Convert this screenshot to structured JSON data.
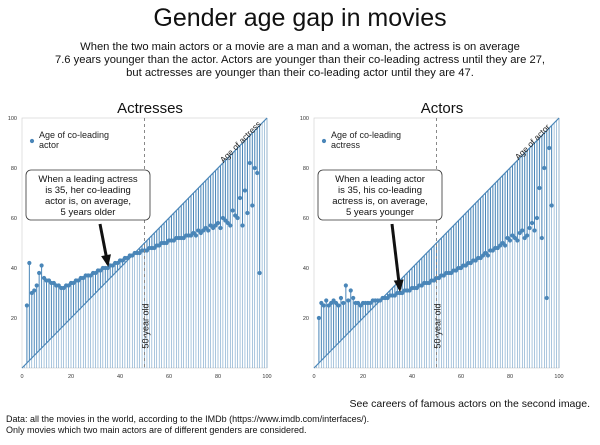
{
  "header": {
    "title": "Gender age gap in movies",
    "subtitle_lines": [
      "When the two main actors or a movie are a man and a woman, the actress is on average",
      "7.6 years younger than the actor. Actors are younger than their co-leading actress until they are 27,",
      "but actresses are younger than their co-leading actor until they are 47."
    ]
  },
  "footer": {
    "note": "See careers of famous actors on the second image.",
    "source_lines": [
      "Data: all the movies in the world, according to the IMDb (https://www.imdb.com/interfaces/).",
      "Only movies which two main actors are of different genders are considered."
    ]
  },
  "colors": {
    "series": "#4a86b8",
    "dashed": "#888888",
    "arrow": "#111111",
    "axes_bg": "#ffffff"
  },
  "chart_data": [
    {
      "type": "scatter",
      "title": "Actresses",
      "legend": {
        "label": "Age of co-leading actor",
        "placement": "top-left"
      },
      "diagonal_label": "Age of actress",
      "vline": {
        "x": 50,
        "label": "50-year old"
      },
      "annotation": {
        "lines": [
          "When a leading actress",
          "is 35, her co-leading",
          "actor is, on average,",
          "5 years older"
        ],
        "points_to": [
          35,
          40
        ]
      },
      "xlim": [
        0,
        100
      ],
      "ylim": [
        0,
        100
      ],
      "xticks": [
        0,
        20,
        40,
        60,
        80,
        100
      ],
      "yticks": [
        20,
        40,
        60,
        80,
        100
      ],
      "tick_labels_x": [
        "0",
        "20",
        "40",
        "60",
        "80",
        "100"
      ],
      "tick_labels_y": [
        "20",
        "40",
        "60",
        "80",
        "100"
      ],
      "x": [
        2,
        3,
        4,
        5,
        6,
        7,
        8,
        9,
        10,
        11,
        12,
        13,
        14,
        15,
        16,
        17,
        18,
        19,
        20,
        21,
        22,
        23,
        24,
        25,
        26,
        27,
        28,
        29,
        30,
        31,
        32,
        33,
        34,
        35,
        36,
        37,
        38,
        39,
        40,
        41,
        42,
        43,
        44,
        45,
        46,
        47,
        48,
        49,
        50,
        51,
        52,
        53,
        54,
        55,
        56,
        57,
        58,
        59,
        60,
        61,
        62,
        63,
        64,
        65,
        66,
        67,
        68,
        69,
        70,
        71,
        72,
        73,
        74,
        75,
        76,
        77,
        78,
        79,
        80,
        81,
        82,
        83,
        84,
        85,
        86,
        87,
        88,
        89,
        90,
        91,
        92,
        93,
        94,
        95,
        96,
        97
      ],
      "y": [
        25,
        42,
        30,
        31,
        33,
        38,
        41,
        36,
        35,
        35,
        34,
        34,
        33,
        33,
        32,
        32,
        33,
        33,
        34,
        34,
        35,
        35,
        36,
        36,
        37,
        37,
        37,
        38,
        38,
        39,
        39,
        40,
        40,
        40,
        41,
        41,
        42,
        42,
        43,
        43,
        44,
        44,
        45,
        45,
        46,
        46,
        46,
        47,
        47,
        47,
        48,
        48,
        48,
        49,
        49,
        50,
        50,
        50,
        51,
        51,
        51,
        52,
        52,
        52,
        52,
        53,
        53,
        53,
        54,
        53,
        55,
        54,
        55,
        56,
        55,
        57,
        56,
        57,
        58,
        56,
        60,
        59,
        58,
        57,
        63,
        61,
        60,
        68,
        57,
        71,
        62,
        82,
        65,
        80,
        78,
        38
      ]
    },
    {
      "type": "scatter",
      "title": "Actors",
      "legend": {
        "label": "Age of co-leading actress",
        "placement": "top-left"
      },
      "diagonal_label": "Age of actor",
      "vline": {
        "x": 50,
        "label": "50-year old"
      },
      "annotation": {
        "lines": [
          "When a leading actor",
          "is 35, his co-leading",
          "actress is, on average,",
          "5 years younger"
        ],
        "points_to": [
          35,
          30
        ]
      },
      "xlim": [
        0,
        100
      ],
      "ylim": [
        0,
        100
      ],
      "xticks": [
        0,
        20,
        40,
        60,
        80,
        100
      ],
      "yticks": [
        20,
        40,
        60,
        80,
        100
      ],
      "tick_labels_x": [
        "0",
        "20",
        "40",
        "60",
        "80",
        "100"
      ],
      "tick_labels_y": [
        "20",
        "40",
        "60",
        "80",
        "100"
      ],
      "x": [
        2,
        3,
        4,
        5,
        6,
        7,
        8,
        9,
        10,
        11,
        12,
        13,
        14,
        15,
        16,
        17,
        18,
        19,
        20,
        21,
        22,
        23,
        24,
        25,
        26,
        27,
        28,
        29,
        30,
        31,
        32,
        33,
        34,
        35,
        36,
        37,
        38,
        39,
        40,
        41,
        42,
        43,
        44,
        45,
        46,
        47,
        48,
        49,
        50,
        51,
        52,
        53,
        54,
        55,
        56,
        57,
        58,
        59,
        60,
        61,
        62,
        63,
        64,
        65,
        66,
        67,
        68,
        69,
        70,
        71,
        72,
        73,
        74,
        75,
        76,
        77,
        78,
        79,
        80,
        81,
        82,
        83,
        84,
        85,
        86,
        87,
        88,
        89,
        90,
        91,
        92,
        93,
        94,
        95,
        96,
        97
      ],
      "y": [
        20,
        26,
        25,
        27,
        25,
        26,
        27,
        26,
        25,
        28,
        26,
        33,
        27,
        31,
        28,
        26,
        26,
        25,
        26,
        26,
        26,
        26,
        27,
        27,
        27,
        27,
        28,
        28,
        28,
        29,
        29,
        29,
        30,
        30,
        30,
        31,
        31,
        31,
        32,
        32,
        32,
        33,
        33,
        34,
        34,
        34,
        35,
        35,
        36,
        36,
        37,
        37,
        38,
        38,
        38,
        39,
        39,
        40,
        40,
        41,
        41,
        42,
        42,
        43,
        43,
        44,
        44,
        45,
        46,
        45,
        47,
        47,
        48,
        48,
        49,
        50,
        49,
        52,
        51,
        53,
        52,
        51,
        54,
        55,
        52,
        53,
        56,
        58,
        55,
        60,
        72,
        52,
        80,
        28,
        88,
        65
      ]
    }
  ]
}
